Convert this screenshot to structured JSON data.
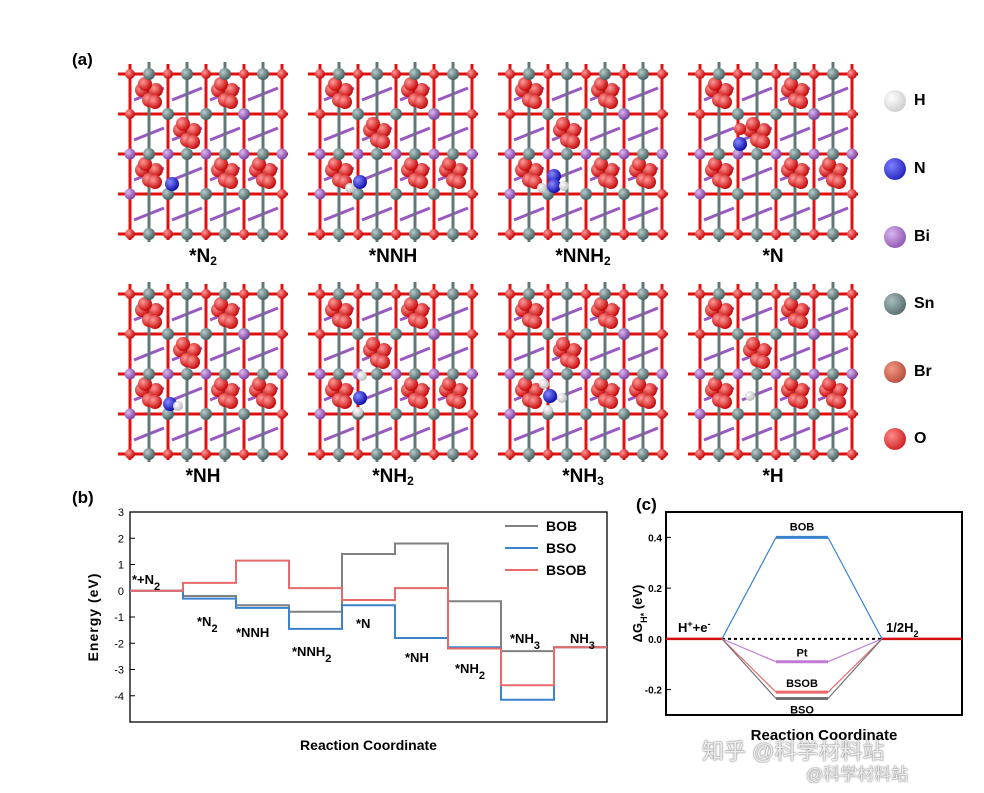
{
  "panel_a": {
    "letter": "(a)",
    "structures": [
      {
        "label_main": "*N",
        "label_sub": "2",
        "label_tail": "",
        "adsorbate": "N2"
      },
      {
        "label_main": "*NNH",
        "label_sub": "",
        "label_tail": "",
        "adsorbate": "NNH"
      },
      {
        "label_main": "*NNH",
        "label_sub": "2",
        "label_tail": "",
        "adsorbate": "NNH2"
      },
      {
        "label_main": "*N",
        "label_sub": "",
        "label_tail": "",
        "adsorbate": "N"
      },
      {
        "label_main": "*NH",
        "label_sub": "",
        "label_tail": "",
        "adsorbate": "NH"
      },
      {
        "label_main": "*NH",
        "label_sub": "2",
        "label_tail": "",
        "adsorbate": "NH2"
      },
      {
        "label_main": "*NH",
        "label_sub": "3",
        "label_tail": "",
        "adsorbate": "NH3"
      },
      {
        "label_main": "*H",
        "label_sub": "",
        "label_tail": "",
        "adsorbate": "H"
      }
    ],
    "legend": [
      {
        "symbol": "H",
        "color": "#ececec"
      },
      {
        "symbol": "N",
        "color": "#1414d8"
      },
      {
        "symbol": "Bi",
        "color": "#9a58c0"
      },
      {
        "symbol": "Sn",
        "color": "#5c7474"
      },
      {
        "symbol": "Br",
        "color": "#c8503a"
      },
      {
        "symbol": "O",
        "color": "#ee0e0e"
      }
    ]
  },
  "panel_b": {
    "letter": "(b)",
    "chart_data": {
      "type": "line",
      "title": "",
      "xlabel": "Reaction Coordinate",
      "ylabel": "Energy (eV)",
      "ylim": [
        -5,
        3
      ],
      "yticks": [
        "3",
        "2",
        "1",
        "0",
        "-1",
        "-2",
        "-3",
        "-4"
      ],
      "steps": [
        "*+N2",
        "*N2",
        "*NNH",
        "*NNH2",
        "*N",
        "*NH",
        "*NH2",
        "*NH3",
        "NH3"
      ],
      "series": [
        {
          "name": "BOB",
          "color": "#808080",
          "values": [
            0,
            -0.2,
            -0.55,
            -0.8,
            1.4,
            1.8,
            -0.4,
            -2.3,
            -2.15
          ]
        },
        {
          "name": "BSO",
          "color": "#3a82cc",
          "values": [
            0,
            -0.3,
            -0.65,
            -1.45,
            -0.55,
            -1.8,
            -2.15,
            -4.15,
            -2.15
          ]
        },
        {
          "name": "BSOB",
          "color": "#e86a6a",
          "values": [
            0,
            0.3,
            1.15,
            0.1,
            -0.35,
            0.1,
            -2.2,
            -3.6,
            -2.15
          ]
        }
      ],
      "step_labels": [
        {
          "main": "*+N",
          "sub": "2"
        },
        {
          "main": "*N",
          "sub": "2"
        },
        {
          "main": "*NNH",
          "sub": ""
        },
        {
          "main": "*NNH",
          "sub": "2"
        },
        {
          "main": "*N",
          "sub": ""
        },
        {
          "main": "*NH",
          "sub": ""
        },
        {
          "main": "*NH",
          "sub": "2"
        },
        {
          "main": "*NH",
          "sub": "3"
        },
        {
          "main": "NH",
          "sub": "3"
        }
      ]
    }
  },
  "panel_c": {
    "letter": "(c)",
    "chart_data": {
      "type": "line",
      "xlabel": "Reaction Coordinate",
      "ylabel_main": "ΔG",
      "ylabel_sub": "H*",
      "ylabel_tail": " (eV)",
      "ylim": [
        -0.3,
        0.5
      ],
      "yticks": [
        "0.4",
        "0.2",
        "0.0",
        "-0.2"
      ],
      "left_label_main": "H",
      "left_label_sup1": "+",
      "left_label_mid": "+e",
      "left_label_sup2": "-",
      "right_label_main": "1/2H",
      "right_label_sub": "2",
      "series": [
        {
          "name": "BOB",
          "color": "#3a82cc",
          "value": 0.4
        },
        {
          "name": "Pt",
          "color": "#c07ad6",
          "value": -0.09
        },
        {
          "name": "BSOB",
          "color": "#e86a6a",
          "value": -0.21
        },
        {
          "name": "BSO",
          "color": "#707070",
          "value": -0.235
        }
      ]
    }
  },
  "watermark": {
    "line1": "知乎 @科学材料站",
    "line2": "@科学材料站"
  }
}
